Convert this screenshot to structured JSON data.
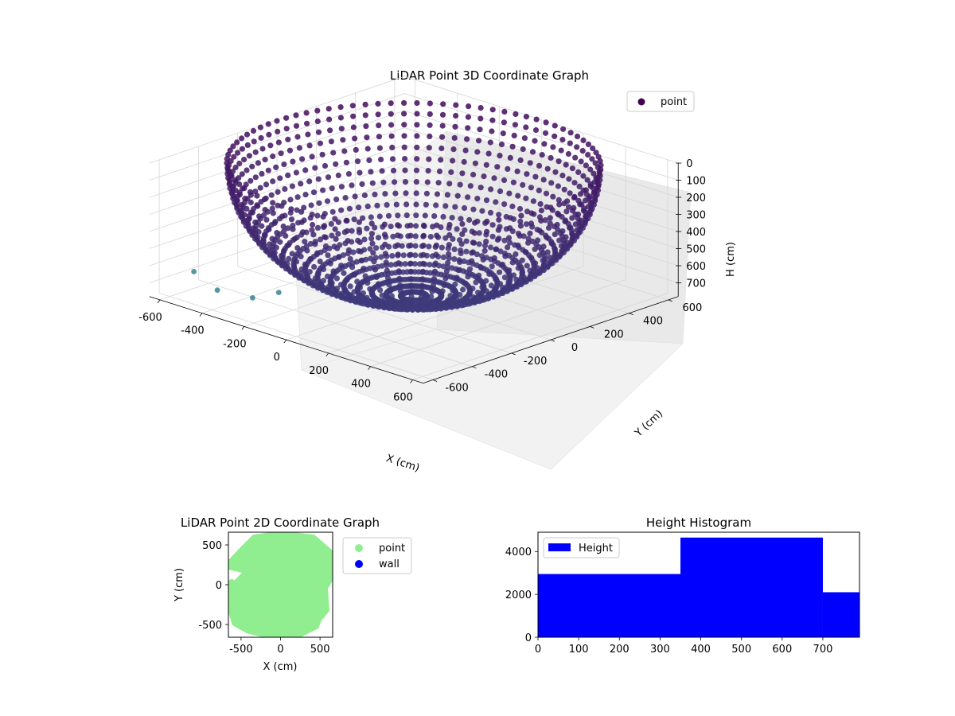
{
  "chart_data": [
    {
      "type": "scatter",
      "projection": "3d",
      "title": "LiDAR Point 3D Coordinate Graph",
      "xlabel": "X (cm)",
      "ylabel": "Y (cm)",
      "zlabel": "H (cm)",
      "xlim": [
        -650,
        650
      ],
      "ylim": [
        -650,
        650
      ],
      "zlim": [
        0,
        780
      ],
      "z_inverted": true,
      "x_ticks": [
        "-600",
        "-400",
        "-200",
        "0",
        "200",
        "400",
        "600"
      ],
      "y_ticks": [
        "-600",
        "-400",
        "-200",
        "0",
        "200",
        "400",
        "600"
      ],
      "z_ticks": [
        "0",
        "100",
        "200",
        "300",
        "400",
        "500",
        "600",
        "700"
      ],
      "grid": true,
      "legend": {
        "position": "top-right",
        "entries": [
          {
            "label": "point",
            "color": "#440154"
          }
        ]
      },
      "colormap": "viridis",
      "description_of_shape": "hemispherical bowl of points, radius ~650 cm, deepest ~780 cm at center",
      "outlier_points": [
        {
          "x": -560,
          "y": -520,
          "h": 650
        },
        {
          "x": -430,
          "y": -540,
          "h": 700
        },
        {
          "x": -300,
          "y": -500,
          "h": 710
        },
        {
          "x": -250,
          "y": -420,
          "h": 690
        }
      ]
    },
    {
      "type": "scatter",
      "title": "LiDAR Point 2D Coordinate Graph",
      "xlabel": "X (cm)",
      "ylabel": "Y (cm)",
      "xlim": [
        -660,
        660
      ],
      "ylim": [
        -660,
        660
      ],
      "x_ticks": [
        "-500",
        "0",
        "500"
      ],
      "y_ticks": [
        "-500",
        "0",
        "500"
      ],
      "legend": {
        "position": "outside-right",
        "entries": [
          {
            "label": "point",
            "color": "#90ee90"
          },
          {
            "label": "wall",
            "color": "#0000ff"
          }
        ]
      },
      "series": [
        {
          "name": "point",
          "color": "#90ee90",
          "shape": "dense disk of radius ~650 cm"
        }
      ]
    },
    {
      "type": "bar",
      "title": "Height Histogram",
      "xlim": [
        0,
        790
      ],
      "ylim": [
        0,
        4900
      ],
      "x_ticks": [
        "0",
        "100",
        "200",
        "300",
        "400",
        "500",
        "600",
        "700"
      ],
      "y_ticks": [
        "0",
        "2000",
        "4000"
      ],
      "legend": {
        "position": "top-left",
        "entries": [
          {
            "label": "Height",
            "color": "#0000ff"
          }
        ]
      },
      "bins": [
        {
          "start": 0,
          "end": 350,
          "count": 2950
        },
        {
          "start": 350,
          "end": 700,
          "count": 4650
        },
        {
          "start": 700,
          "end": 790,
          "count": 2100
        }
      ],
      "color": "#0000ff"
    }
  ]
}
